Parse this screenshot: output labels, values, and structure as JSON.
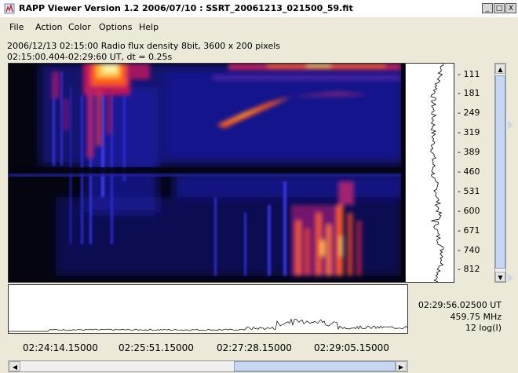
{
  "window": {
    "title": "RAPP Viewer Version 1.2 2006/07/10 : SSRT_20061213_021500_59.fit",
    "controls": [
      "_",
      "□",
      "X"
    ]
  },
  "menu": [
    "File",
    "Action",
    "Color",
    "Options",
    "Help"
  ],
  "info": {
    "line1": "2006/12/13 02:15:00 Radio flux density 8bit,  3600 x 200 pixels",
    "line2": "02:15:00.404-02:29:60 UT,  dt = 0.25s"
  },
  "frequency_ticks": [
    "111",
    "181",
    "249",
    "319",
    "389",
    "460",
    "531",
    "600",
    "671",
    "740",
    "812"
  ],
  "readout": {
    "time": "02:29:56.02500 UT",
    "frequency": "459.75 MHz",
    "scale": "12 log(I)"
  },
  "time_axis": [
    "02:24:14.15000",
    "02:25:51.15000",
    "02:27:28.15000",
    "02:29:05.15000"
  ],
  "colors": {
    "spectrogram_background": "#050510",
    "low_intensity": "#1a1aa0",
    "high_intensity": "#ff5a1a",
    "peak_intensity": "#fff2a0"
  },
  "icons": {
    "app": "rapp-app-icon",
    "scroll_up": "arrow-up-icon",
    "scroll_down": "arrow-down-icon",
    "scroll_left": "arrow-left-icon",
    "scroll_right": "arrow-right-icon"
  }
}
